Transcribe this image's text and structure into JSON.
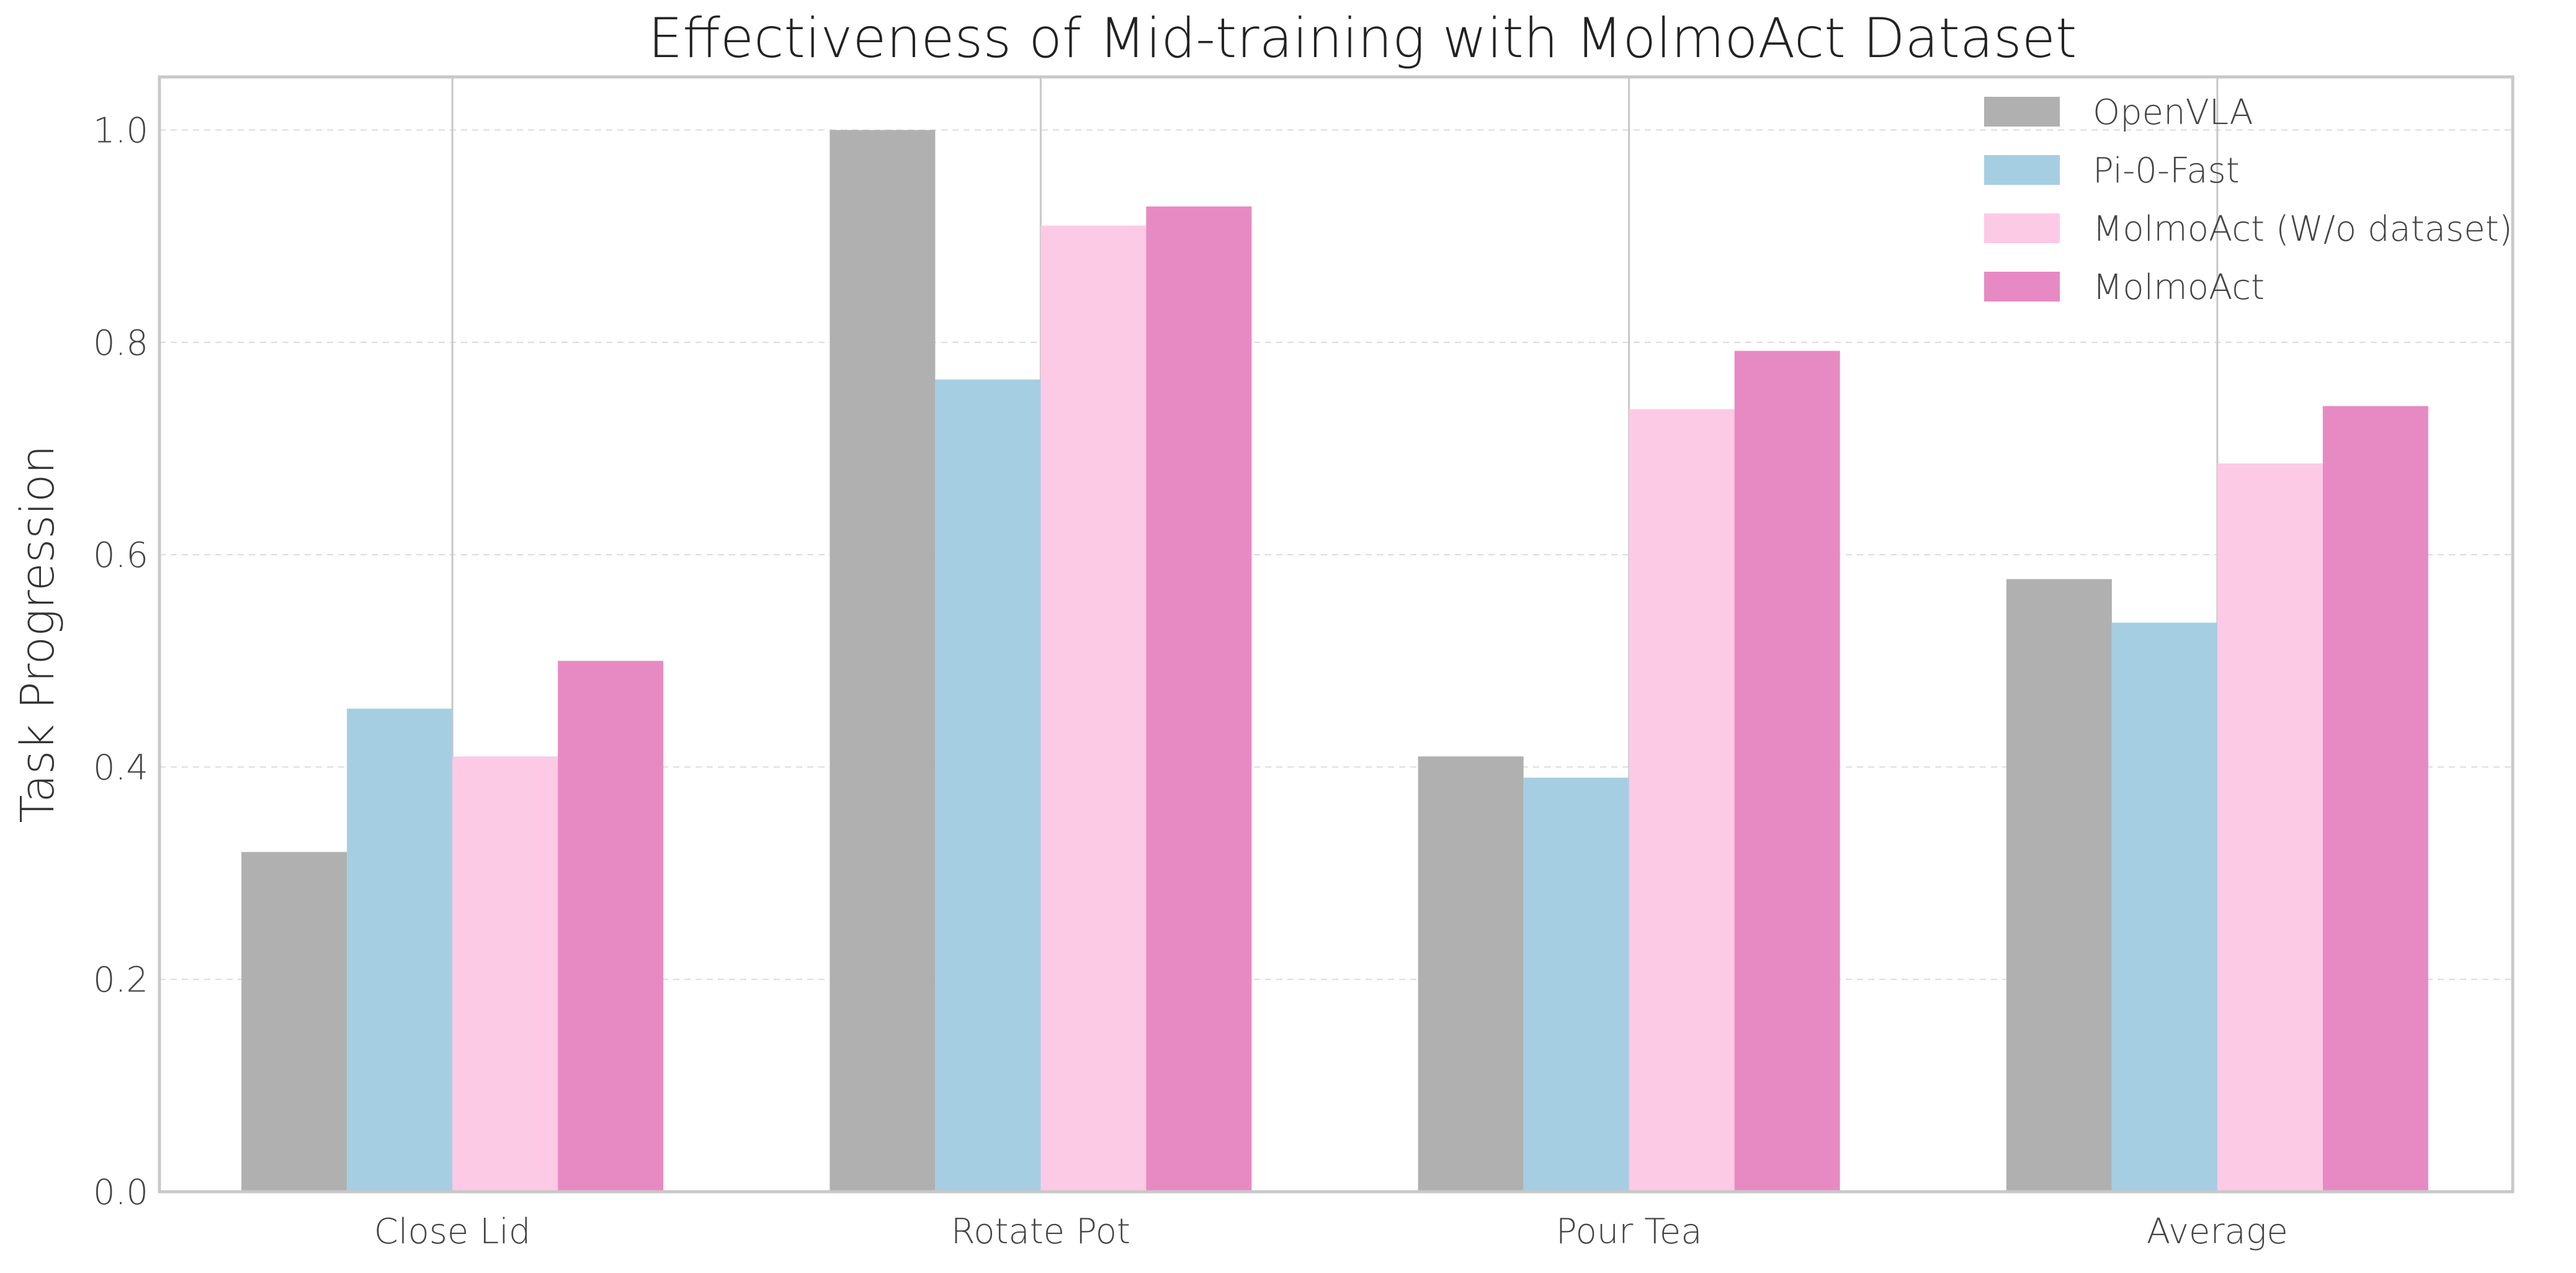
{
  "chart_data": {
    "type": "bar",
    "title": "Effectiveness of Mid-training with MolmoAct Dataset",
    "xlabel": "",
    "ylabel": "Task Progression",
    "ylim": [
      0,
      1.05
    ],
    "yticks": [
      "0.0",
      "0.2",
      "0.4",
      "0.6",
      "0.8",
      "1.0"
    ],
    "ytick_values": [
      0.0,
      0.2,
      0.4,
      0.6,
      0.8,
      1.0
    ],
    "categories": [
      "Close Lid",
      "Rotate Pot",
      "Pour Tea",
      "Average"
    ],
    "series": [
      {
        "name": "OpenVLA",
        "color": "#b0b0b0",
        "values": [
          0.32,
          1.0,
          0.41,
          0.577
        ]
      },
      {
        "name": "Pi-0-Fast",
        "color": "#a6cee3",
        "values": [
          0.455,
          0.765,
          0.39,
          0.536
        ]
      },
      {
        "name": "MolmoAct (W/o dataset)",
        "color": "#fccae4",
        "values": [
          0.41,
          0.91,
          0.737,
          0.686
        ]
      },
      {
        "name": "MolmoAct",
        "color": "#e78ac3",
        "values": [
          0.5,
          0.928,
          0.792,
          0.74
        ]
      }
    ],
    "legend_position": "top-right",
    "grid": true
  }
}
